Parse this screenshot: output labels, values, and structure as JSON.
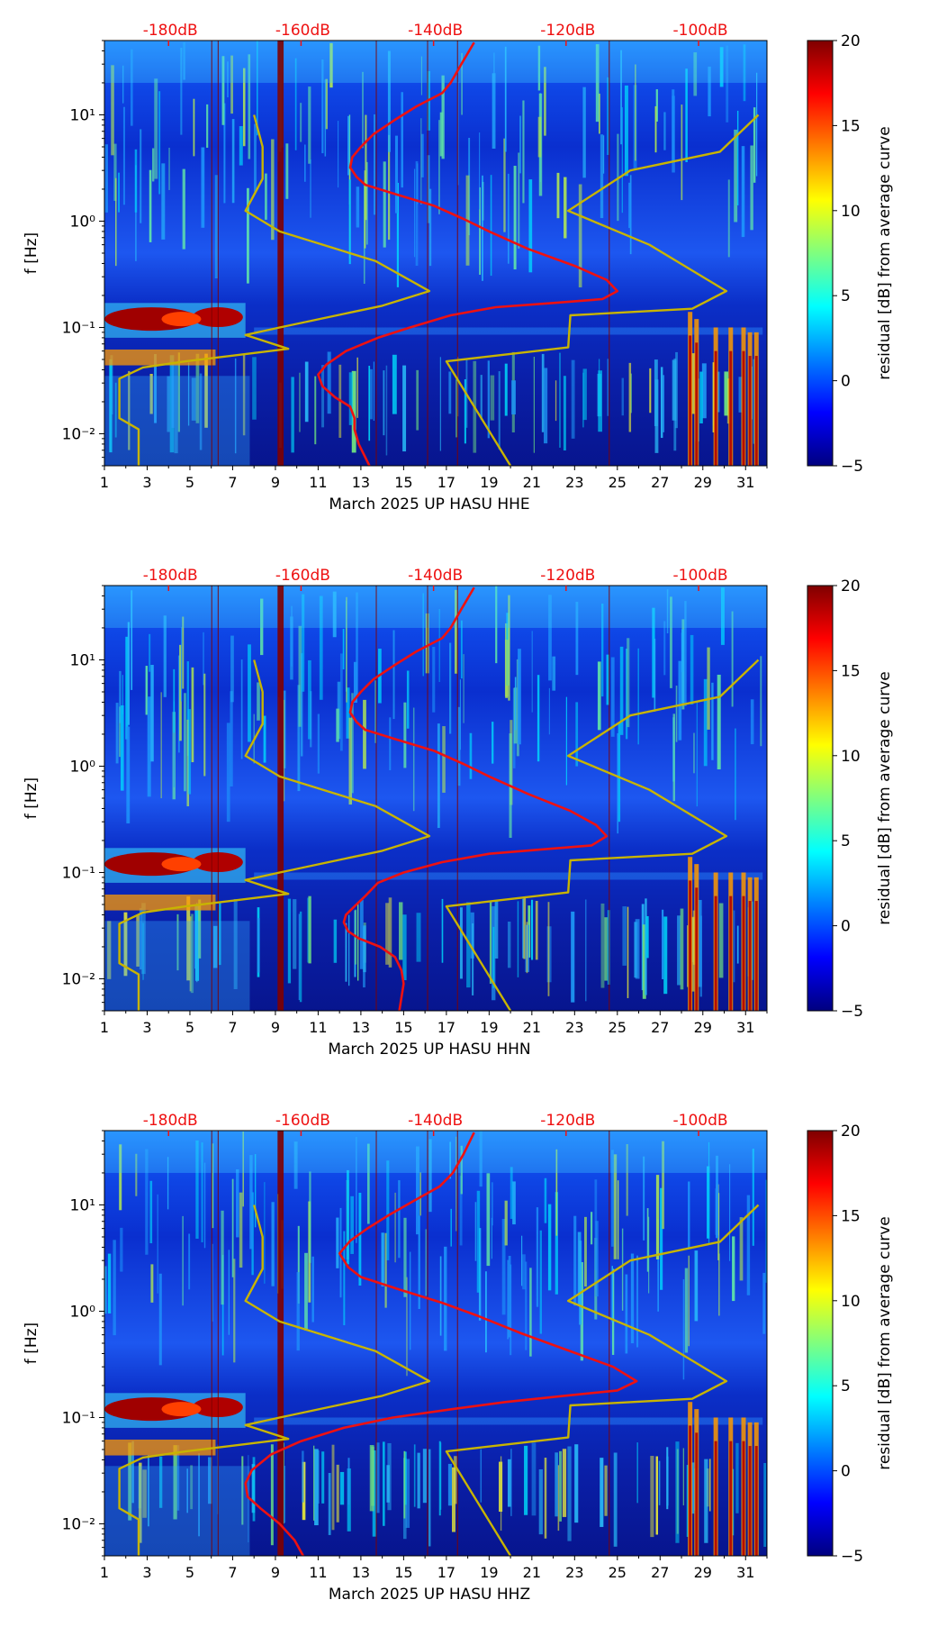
{
  "chart_data": [
    {
      "type": "heatmap",
      "title": "",
      "xlabel": "March 2025 UP HASU  HHE",
      "ylabel": "f [Hz]",
      "x_ticks": [
        "1",
        "3",
        "5",
        "7",
        "9",
        "11",
        "13",
        "15",
        "17",
        "19",
        "21",
        "23",
        "25",
        "27",
        "29",
        "31"
      ],
      "x_range": [
        1,
        32
      ],
      "y_scale": "log",
      "y_range": [
        0.005,
        50
      ],
      "y_ticks": [
        {
          "value": 0.01,
          "label": "10⁻²"
        },
        {
          "value": 0.1,
          "label": "10⁻¹"
        },
        {
          "value": 1,
          "label": "10⁰"
        },
        {
          "value": 10,
          "label": "10¹"
        }
      ],
      "top_axis_ticks": [
        {
          "x": 4,
          "label": "-180dB"
        },
        {
          "x": 10.2,
          "label": "-160dB"
        },
        {
          "x": 16.4,
          "label": "-140dB"
        },
        {
          "x": 22.6,
          "label": "-120dB"
        },
        {
          "x": 28.8,
          "label": "-100dB"
        }
      ],
      "colorbar": {
        "label": "residual [dB] from average curve",
        "range": [
          -5,
          20
        ],
        "ticks": [
          "20",
          "15",
          "10",
          "5",
          "0",
          "−5"
        ],
        "colormap": "jet"
      },
      "lines": [
        {
          "color": "#c8b400",
          "points": [
            [
              8,
              10
            ],
            [
              8.4,
              5
            ],
            [
              8.4,
              2.5
            ],
            [
              7.6,
              1.25
            ],
            [
              9.2,
              0.8
            ],
            [
              13.7,
              0.42
            ],
            [
              16.2,
              0.22
            ],
            [
              14,
              0.16
            ],
            [
              9.2,
              0.1
            ],
            [
              7.6,
              0.085
            ],
            [
              8,
              0.08
            ],
            [
              9.6,
              0.063
            ],
            [
              4.8,
              0.048
            ],
            [
              2.8,
              0.042
            ],
            [
              1.7,
              0.033
            ],
            [
              1.7,
              0.014
            ],
            [
              2.6,
              0.011
            ],
            [
              2.6,
              0.005
            ]
          ]
        },
        {
          "color": "#c8b400",
          "points": [
            [
              31.6,
              10
            ],
            [
              29.8,
              4.5
            ],
            [
              25.6,
              3
            ],
            [
              22.7,
              1.25
            ],
            [
              26.5,
              0.6
            ],
            [
              30.1,
              0.22
            ],
            [
              28.5,
              0.15
            ],
            [
              22.8,
              0.13
            ],
            [
              22.7,
              0.065
            ],
            [
              17,
              0.048
            ],
            [
              20,
              0.005
            ]
          ]
        },
        {
          "color": "#ee1111",
          "points": [
            [
              18.3,
              48
            ],
            [
              17.7,
              30
            ],
            [
              17.2,
              20
            ],
            [
              16.8,
              16
            ],
            [
              15.6,
              12
            ],
            [
              14.6,
              9
            ],
            [
              13.6,
              6.6
            ],
            [
              13,
              5
            ],
            [
              12.6,
              4
            ],
            [
              12.5,
              3.2
            ],
            [
              12.8,
              2.6
            ],
            [
              13.2,
              2.2
            ],
            [
              14.6,
              1.8
            ],
            [
              16.4,
              1.4
            ],
            [
              17.8,
              1.05
            ],
            [
              19,
              0.8
            ],
            [
              20.8,
              0.55
            ],
            [
              23,
              0.38
            ],
            [
              24.5,
              0.28
            ],
            [
              25,
              0.22
            ],
            [
              24.3,
              0.185
            ],
            [
              22,
              0.17
            ],
            [
              19.3,
              0.155
            ],
            [
              17.2,
              0.13
            ],
            [
              15.3,
              0.1
            ],
            [
              13.8,
              0.08
            ],
            [
              12.3,
              0.06
            ],
            [
              11.4,
              0.045
            ],
            [
              11,
              0.036
            ],
            [
              11.2,
              0.028
            ],
            [
              11.8,
              0.022
            ],
            [
              12.5,
              0.018
            ],
            [
              12.7,
              0.014
            ],
            [
              12.7,
              0.011
            ],
            [
              12.9,
              0.008
            ],
            [
              13.4,
              0.005
            ]
          ]
        }
      ]
    },
    {
      "type": "heatmap",
      "title": "",
      "xlabel": "March 2025 UP HASU  HHN",
      "ylabel": "f [Hz]",
      "x_ticks": [
        "1",
        "3",
        "5",
        "7",
        "9",
        "11",
        "13",
        "15",
        "17",
        "19",
        "21",
        "23",
        "25",
        "27",
        "29",
        "31"
      ],
      "x_range": [
        1,
        32
      ],
      "y_scale": "log",
      "y_range": [
        0.005,
        50
      ],
      "y_ticks": [
        {
          "value": 0.01,
          "label": "10⁻²"
        },
        {
          "value": 0.1,
          "label": "10⁻¹"
        },
        {
          "value": 1,
          "label": "10⁰"
        },
        {
          "value": 10,
          "label": "10¹"
        }
      ],
      "top_axis_ticks": [
        {
          "x": 4,
          "label": "-180dB"
        },
        {
          "x": 10.2,
          "label": "-160dB"
        },
        {
          "x": 16.4,
          "label": "-140dB"
        },
        {
          "x": 22.6,
          "label": "-120dB"
        },
        {
          "x": 28.8,
          "label": "-100dB"
        }
      ],
      "colorbar": {
        "label": "residual [dB] from average curve",
        "range": [
          -5,
          20
        ],
        "ticks": [
          "20",
          "15",
          "10",
          "5",
          "0",
          "−5"
        ],
        "colormap": "jet"
      },
      "lines": [
        {
          "color": "#c8b400",
          "points": [
            [
              8,
              10
            ],
            [
              8.4,
              5
            ],
            [
              8.4,
              2.5
            ],
            [
              7.6,
              1.25
            ],
            [
              9.2,
              0.8
            ],
            [
              13.7,
              0.42
            ],
            [
              16.2,
              0.22
            ],
            [
              14,
              0.16
            ],
            [
              9.2,
              0.1
            ],
            [
              7.6,
              0.085
            ],
            [
              8,
              0.08
            ],
            [
              9.6,
              0.063
            ],
            [
              4.8,
              0.048
            ],
            [
              2.8,
              0.042
            ],
            [
              1.7,
              0.033
            ],
            [
              1.7,
              0.014
            ],
            [
              2.6,
              0.011
            ],
            [
              2.6,
              0.005
            ]
          ]
        },
        {
          "color": "#c8b400",
          "points": [
            [
              31.6,
              10
            ],
            [
              29.8,
              4.5
            ],
            [
              25.6,
              3
            ],
            [
              22.7,
              1.25
            ],
            [
              26.5,
              0.6
            ],
            [
              30.1,
              0.22
            ],
            [
              28.5,
              0.15
            ],
            [
              22.8,
              0.13
            ],
            [
              22.7,
              0.065
            ],
            [
              17,
              0.048
            ],
            [
              20,
              0.005
            ]
          ]
        },
        {
          "color": "#ee1111",
          "points": [
            [
              18.3,
              48
            ],
            [
              17.7,
              30
            ],
            [
              17.2,
              20
            ],
            [
              16.8,
              16
            ],
            [
              15.6,
              12
            ],
            [
              14.6,
              9
            ],
            [
              13.6,
              6.6
            ],
            [
              13,
              5
            ],
            [
              12.6,
              4
            ],
            [
              12.5,
              3.2
            ],
            [
              12.8,
              2.6
            ],
            [
              13.2,
              2.2
            ],
            [
              14.6,
              1.8
            ],
            [
              16.4,
              1.4
            ],
            [
              17.8,
              1.05
            ],
            [
              19,
              0.8
            ],
            [
              20.8,
              0.55
            ],
            [
              22.8,
              0.38
            ],
            [
              24,
              0.28
            ],
            [
              24.5,
              0.22
            ],
            [
              23.8,
              0.18
            ],
            [
              21.5,
              0.165
            ],
            [
              19,
              0.15
            ],
            [
              16.8,
              0.125
            ],
            [
              15,
              0.1
            ],
            [
              13.8,
              0.08
            ],
            [
              13.2,
              0.06
            ],
            [
              12.7,
              0.048
            ],
            [
              12.3,
              0.04
            ],
            [
              12.2,
              0.034
            ],
            [
              12.4,
              0.028
            ],
            [
              12.9,
              0.024
            ],
            [
              13.9,
              0.02
            ],
            [
              14.6,
              0.016
            ],
            [
              14.9,
              0.012
            ],
            [
              15,
              0.009
            ],
            [
              14.8,
              0.005
            ]
          ]
        }
      ]
    },
    {
      "type": "heatmap",
      "title": "",
      "xlabel": "March 2025 UP HASU  HHZ",
      "ylabel": "f [Hz]",
      "x_ticks": [
        "1",
        "3",
        "5",
        "7",
        "9",
        "11",
        "13",
        "15",
        "17",
        "19",
        "21",
        "23",
        "25",
        "27",
        "29",
        "31"
      ],
      "x_range": [
        1,
        32
      ],
      "y_scale": "log",
      "y_range": [
        0.005,
        50
      ],
      "y_ticks": [
        {
          "value": 0.01,
          "label": "10⁻²"
        },
        {
          "value": 0.1,
          "label": "10⁻¹"
        },
        {
          "value": 1,
          "label": "10⁰"
        },
        {
          "value": 10,
          "label": "10¹"
        }
      ],
      "top_axis_ticks": [
        {
          "x": 4,
          "label": "-180dB"
        },
        {
          "x": 10.2,
          "label": "-160dB"
        },
        {
          "x": 16.4,
          "label": "-140dB"
        },
        {
          "x": 22.6,
          "label": "-120dB"
        },
        {
          "x": 28.8,
          "label": "-100dB"
        }
      ],
      "colorbar": {
        "label": "residual [dB] from average curve",
        "range": [
          -5,
          20
        ],
        "ticks": [
          "20",
          "15",
          "10",
          "5",
          "0",
          "−5"
        ],
        "colormap": "jet"
      },
      "lines": [
        {
          "color": "#c8b400",
          "points": [
            [
              8,
              10
            ],
            [
              8.4,
              5
            ],
            [
              8.4,
              2.5
            ],
            [
              7.6,
              1.25
            ],
            [
              9.2,
              0.8
            ],
            [
              13.7,
              0.42
            ],
            [
              16.2,
              0.22
            ],
            [
              14,
              0.16
            ],
            [
              9.2,
              0.1
            ],
            [
              7.6,
              0.085
            ],
            [
              8,
              0.08
            ],
            [
              9.6,
              0.063
            ],
            [
              4.8,
              0.048
            ],
            [
              2.8,
              0.042
            ],
            [
              1.7,
              0.033
            ],
            [
              1.7,
              0.014
            ],
            [
              2.6,
              0.011
            ],
            [
              2.6,
              0.005
            ]
          ]
        },
        {
          "color": "#c8b400",
          "points": [
            [
              31.6,
              10
            ],
            [
              29.8,
              4.5
            ],
            [
              25.6,
              3
            ],
            [
              22.7,
              1.25
            ],
            [
              26.5,
              0.6
            ],
            [
              30.1,
              0.22
            ],
            [
              28.5,
              0.15
            ],
            [
              22.8,
              0.13
            ],
            [
              22.7,
              0.065
            ],
            [
              17,
              0.048
            ],
            [
              20,
              0.005
            ]
          ]
        },
        {
          "color": "#ee1111",
          "points": [
            [
              18.3,
              48
            ],
            [
              17.8,
              30
            ],
            [
              17.3,
              20
            ],
            [
              16.7,
              15
            ],
            [
              15.5,
              11
            ],
            [
              14.3,
              8
            ],
            [
              13.3,
              6
            ],
            [
              12.5,
              4.6
            ],
            [
              12,
              3.5
            ],
            [
              12.4,
              2.6
            ],
            [
              13,
              2.1
            ],
            [
              14.8,
              1.6
            ],
            [
              16.8,
              1.2
            ],
            [
              18.5,
              0.9
            ],
            [
              20.5,
              0.62
            ],
            [
              22.8,
              0.42
            ],
            [
              24.8,
              0.3
            ],
            [
              25.9,
              0.22
            ],
            [
              25,
              0.18
            ],
            [
              22.5,
              0.16
            ],
            [
              19.8,
              0.14
            ],
            [
              17.3,
              0.12
            ],
            [
              14.5,
              0.1
            ],
            [
              12.2,
              0.08
            ],
            [
              10.2,
              0.06
            ],
            [
              8.8,
              0.045
            ],
            [
              7.9,
              0.032
            ],
            [
              7.6,
              0.024
            ],
            [
              7.7,
              0.018
            ],
            [
              8.3,
              0.014
            ],
            [
              9.2,
              0.01
            ],
            [
              9.9,
              0.007
            ],
            [
              10.3,
              0.005
            ]
          ]
        }
      ]
    }
  ]
}
